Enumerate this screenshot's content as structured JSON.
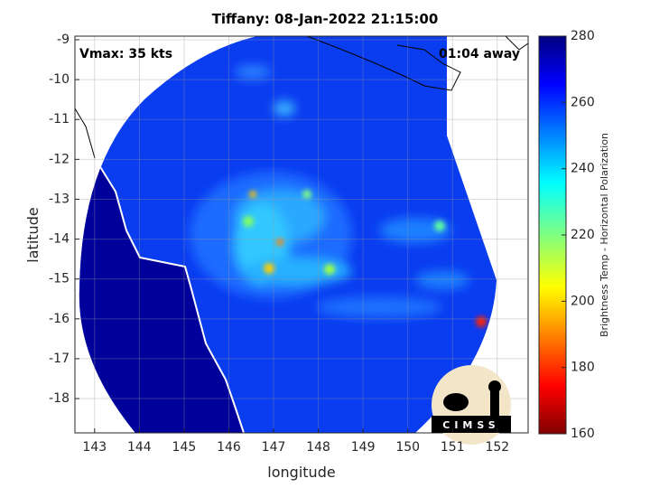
{
  "chart_data": {
    "type": "image",
    "title": "Tiffany: 08-Jan-2022 21:15:00",
    "annotations": [
      "Vmax: 35 kts",
      "01:04 away"
    ],
    "xlabel": "longitude",
    "ylabel": "latitude",
    "xlim": [
      142.56,
      152.69
    ],
    "xticks": [
      143,
      144,
      145,
      146,
      147,
      148,
      149,
      150,
      151,
      152
    ],
    "ylim": [
      -18.86,
      -8.91
    ],
    "yticks": [
      -9,
      -10,
      -11,
      -12,
      -13,
      -14,
      -15,
      -16,
      -17,
      -18
    ],
    "grid": true,
    "colorbar": {
      "label": "Brightness Temp - Horizontal Polarization",
      "lim": [
        160,
        280
      ],
      "ticks": [
        160,
        180,
        200,
        220,
        240,
        260,
        280
      ],
      "colormap": "jet"
    },
    "logo": "CIMSS"
  }
}
